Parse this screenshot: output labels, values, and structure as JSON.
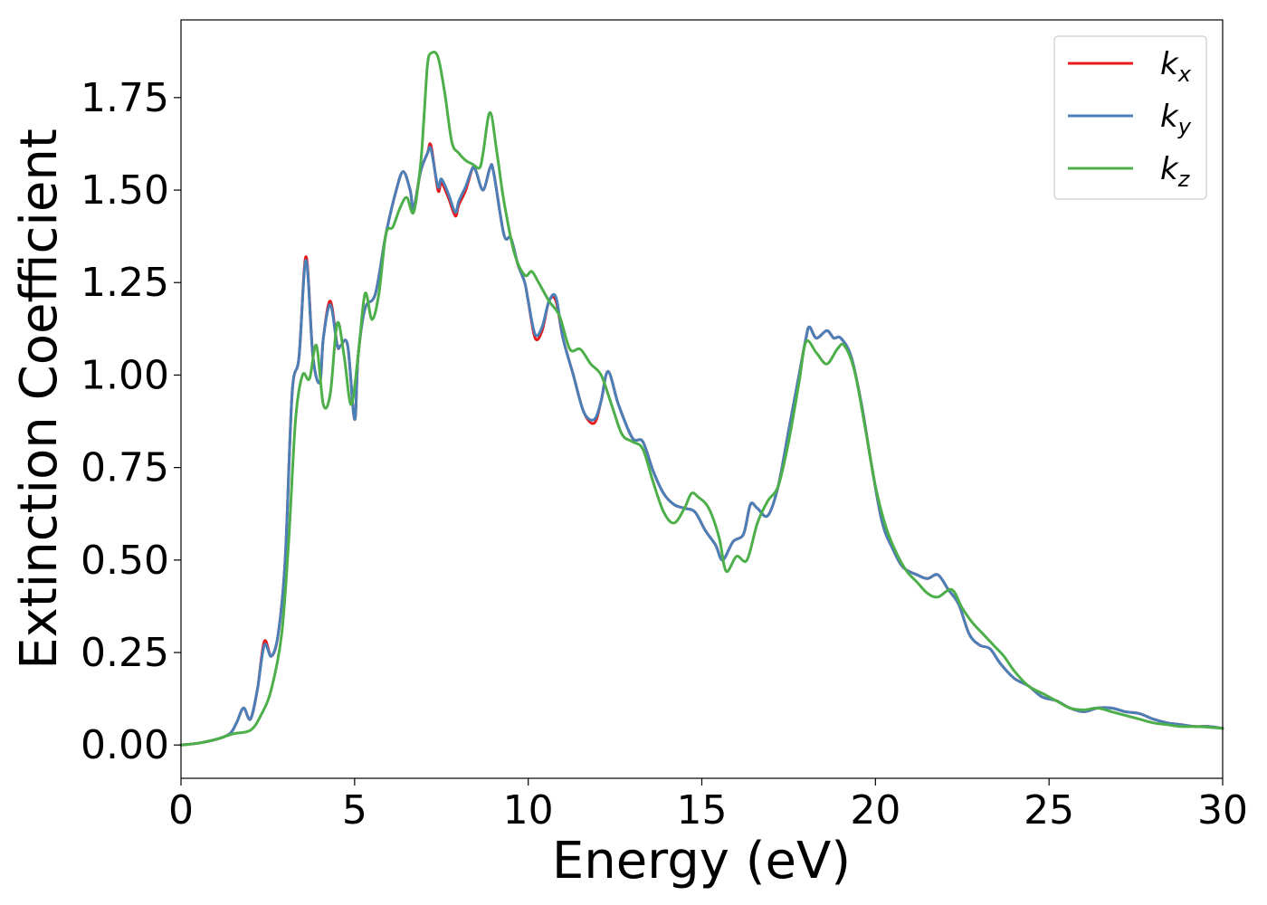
{
  "chart_data": {
    "type": "line",
    "xlabel": "Energy (eV)",
    "ylabel": "Extinction Coefficient",
    "xlim": [
      0,
      30
    ],
    "ylim": [
      -0.09,
      1.96
    ],
    "xticks": [
      0,
      5,
      10,
      15,
      20,
      25,
      30
    ],
    "xtick_labels": [
      "0",
      "5",
      "10",
      "15",
      "20",
      "25",
      "30"
    ],
    "yticks": [
      0,
      0.25,
      0.5,
      0.75,
      1.0,
      1.25,
      1.5,
      1.75
    ],
    "ytick_labels": [
      "0.00",
      "0.25",
      "0.50",
      "0.75",
      "1.00",
      "1.25",
      "1.50",
      "1.75"
    ],
    "grid": false,
    "legend_position": "top-right",
    "series": [
      {
        "name": "kx",
        "label_base": "k",
        "label_sub": "x",
        "color": "#e41a1c",
        "x": [
          0,
          0.5,
          1.0,
          1.4,
          1.6,
          1.8,
          2.0,
          2.2,
          2.4,
          2.6,
          2.8,
          3.0,
          3.2,
          3.4,
          3.6,
          3.8,
          4.0,
          4.1,
          4.3,
          4.5,
          4.6,
          4.8,
          5.0,
          5.1,
          5.3,
          5.6,
          5.9,
          6.2,
          6.4,
          6.6,
          6.7,
          6.9,
          7.1,
          7.2,
          7.4,
          7.5,
          7.7,
          7.9,
          8.0,
          8.2,
          8.4,
          8.5,
          8.7,
          8.9,
          9.0,
          9.3,
          9.5,
          9.7,
          9.9,
          10.0,
          10.2,
          10.4,
          10.6,
          10.8,
          11.0,
          11.3,
          11.6,
          11.9,
          12.1,
          12.3,
          12.6,
          13.0,
          13.3,
          13.6,
          13.9,
          14.2,
          14.5,
          14.8,
          15.1,
          15.4,
          15.6,
          15.9,
          16.2,
          16.4,
          16.6,
          16.9,
          17.2,
          17.5,
          17.8,
          18.0,
          18.1,
          18.3,
          18.6,
          18.8,
          19.0,
          19.3,
          19.6,
          19.9,
          20.2,
          20.5,
          20.8,
          21.2,
          21.5,
          21.8,
          22.1,
          22.4,
          22.7,
          23.0,
          23.3,
          23.6,
          24.0,
          24.4,
          24.8,
          25.2,
          25.6,
          26.0,
          26.4,
          26.8,
          27.2,
          27.6,
          28.0,
          28.4,
          28.8,
          29.2,
          29.6,
          30.0
        ],
        "y": [
          0.0,
          0.005,
          0.015,
          0.03,
          0.06,
          0.1,
          0.07,
          0.15,
          0.28,
          0.24,
          0.3,
          0.5,
          0.95,
          1.05,
          1.32,
          1.05,
          0.98,
          1.1,
          1.2,
          1.08,
          1.08,
          1.08,
          0.88,
          1.05,
          1.18,
          1.22,
          1.38,
          1.5,
          1.55,
          1.5,
          1.45,
          1.55,
          1.6,
          1.62,
          1.5,
          1.52,
          1.48,
          1.43,
          1.46,
          1.5,
          1.56,
          1.55,
          1.5,
          1.56,
          1.55,
          1.38,
          1.37,
          1.3,
          1.25,
          1.2,
          1.1,
          1.12,
          1.2,
          1.2,
          1.1,
          1.0,
          0.9,
          0.87,
          0.93,
          1.01,
          0.92,
          0.83,
          0.82,
          0.74,
          0.68,
          0.65,
          0.64,
          0.63,
          0.58,
          0.54,
          0.5,
          0.55,
          0.57,
          0.65,
          0.64,
          0.62,
          0.7,
          0.85,
          1.0,
          1.1,
          1.13,
          1.1,
          1.12,
          1.1,
          1.1,
          1.05,
          0.92,
          0.75,
          0.6,
          0.53,
          0.48,
          0.46,
          0.45,
          0.46,
          0.42,
          0.38,
          0.3,
          0.27,
          0.26,
          0.22,
          0.18,
          0.16,
          0.13,
          0.12,
          0.1,
          0.09,
          0.1,
          0.1,
          0.09,
          0.085,
          0.07,
          0.06,
          0.055,
          0.05,
          0.05,
          0.045
        ]
      },
      {
        "name": "ky",
        "label_base": "k",
        "label_sub": "y",
        "color": "#4a7fb8",
        "x": [
          0,
          0.5,
          1.0,
          1.4,
          1.6,
          1.8,
          2.0,
          2.2,
          2.4,
          2.6,
          2.8,
          3.0,
          3.2,
          3.4,
          3.6,
          3.8,
          4.0,
          4.1,
          4.3,
          4.5,
          4.6,
          4.8,
          5.0,
          5.1,
          5.3,
          5.6,
          5.9,
          6.2,
          6.4,
          6.6,
          6.7,
          6.9,
          7.1,
          7.2,
          7.4,
          7.5,
          7.7,
          7.9,
          8.0,
          8.2,
          8.4,
          8.5,
          8.7,
          8.9,
          9.0,
          9.3,
          9.5,
          9.7,
          9.9,
          10.0,
          10.2,
          10.4,
          10.6,
          10.8,
          11.0,
          11.3,
          11.6,
          11.9,
          12.1,
          12.3,
          12.6,
          13.0,
          13.3,
          13.6,
          13.9,
          14.2,
          14.5,
          14.8,
          15.1,
          15.4,
          15.6,
          15.9,
          16.2,
          16.4,
          16.6,
          16.9,
          17.2,
          17.5,
          17.8,
          18.0,
          18.1,
          18.3,
          18.6,
          18.8,
          19.0,
          19.3,
          19.6,
          19.9,
          20.2,
          20.5,
          20.8,
          21.2,
          21.5,
          21.8,
          22.1,
          22.4,
          22.7,
          23.0,
          23.3,
          23.6,
          24.0,
          24.4,
          24.8,
          25.2,
          25.6,
          26.0,
          26.4,
          26.8,
          27.2,
          27.6,
          28.0,
          28.4,
          28.8,
          29.2,
          29.6,
          30.0
        ],
        "y": [
          0.0,
          0.005,
          0.015,
          0.03,
          0.06,
          0.1,
          0.07,
          0.15,
          0.27,
          0.24,
          0.3,
          0.5,
          0.95,
          1.05,
          1.31,
          1.05,
          0.98,
          1.1,
          1.19,
          1.08,
          1.08,
          1.08,
          0.88,
          1.05,
          1.18,
          1.22,
          1.38,
          1.5,
          1.55,
          1.5,
          1.45,
          1.55,
          1.6,
          1.61,
          1.51,
          1.53,
          1.49,
          1.44,
          1.47,
          1.51,
          1.56,
          1.55,
          1.5,
          1.56,
          1.55,
          1.38,
          1.37,
          1.3,
          1.25,
          1.2,
          1.11,
          1.13,
          1.2,
          1.21,
          1.1,
          1.0,
          0.9,
          0.88,
          0.93,
          1.01,
          0.92,
          0.83,
          0.82,
          0.74,
          0.68,
          0.65,
          0.64,
          0.63,
          0.58,
          0.54,
          0.5,
          0.55,
          0.57,
          0.65,
          0.64,
          0.62,
          0.7,
          0.85,
          1.0,
          1.1,
          1.13,
          1.1,
          1.12,
          1.1,
          1.1,
          1.05,
          0.92,
          0.75,
          0.6,
          0.53,
          0.48,
          0.46,
          0.45,
          0.46,
          0.42,
          0.38,
          0.3,
          0.27,
          0.26,
          0.22,
          0.18,
          0.16,
          0.13,
          0.12,
          0.1,
          0.09,
          0.1,
          0.1,
          0.09,
          0.085,
          0.07,
          0.06,
          0.055,
          0.05,
          0.05,
          0.045
        ]
      },
      {
        "name": "kz",
        "label_base": "k",
        "label_sub": "z",
        "color": "#4daf4a",
        "x": [
          0,
          0.5,
          1.0,
          1.5,
          2.0,
          2.3,
          2.6,
          2.9,
          3.1,
          3.3,
          3.5,
          3.7,
          3.9,
          4.1,
          4.3,
          4.5,
          4.7,
          4.9,
          5.1,
          5.3,
          5.5,
          5.7,
          5.9,
          6.1,
          6.3,
          6.5,
          6.7,
          6.9,
          7.0,
          7.1,
          7.2,
          7.4,
          7.6,
          7.8,
          8.0,
          8.2,
          8.4,
          8.6,
          8.7,
          8.9,
          9.1,
          9.3,
          9.6,
          9.9,
          10.1,
          10.3,
          10.6,
          10.9,
          11.2,
          11.5,
          11.8,
          12.1,
          12.4,
          12.7,
          13.0,
          13.3,
          13.6,
          13.9,
          14.2,
          14.5,
          14.7,
          14.9,
          15.2,
          15.5,
          15.7,
          16.0,
          16.3,
          16.6,
          16.9,
          17.2,
          17.5,
          17.8,
          18.0,
          18.3,
          18.6,
          18.9,
          19.1,
          19.4,
          19.7,
          20.0,
          20.3,
          20.6,
          20.9,
          21.2,
          21.5,
          21.8,
          22.2,
          22.5,
          22.8,
          23.1,
          23.4,
          23.7,
          24.0,
          24.4,
          24.8,
          25.2,
          25.6,
          26.0,
          26.4,
          26.8,
          27.2,
          27.6,
          28.0,
          28.4,
          28.8,
          29.2,
          29.6,
          30.0
        ],
        "y": [
          0.0,
          0.005,
          0.015,
          0.03,
          0.04,
          0.08,
          0.15,
          0.3,
          0.55,
          0.88,
          1.0,
          0.99,
          1.08,
          0.92,
          0.95,
          1.14,
          1.05,
          0.92,
          1.05,
          1.22,
          1.15,
          1.22,
          1.38,
          1.4,
          1.45,
          1.48,
          1.44,
          1.57,
          1.7,
          1.84,
          1.87,
          1.86,
          1.76,
          1.63,
          1.6,
          1.58,
          1.57,
          1.56,
          1.6,
          1.71,
          1.6,
          1.47,
          1.33,
          1.27,
          1.28,
          1.25,
          1.2,
          1.16,
          1.07,
          1.07,
          1.03,
          1.0,
          0.92,
          0.84,
          0.82,
          0.8,
          0.71,
          0.63,
          0.6,
          0.64,
          0.68,
          0.67,
          0.64,
          0.56,
          0.47,
          0.51,
          0.5,
          0.6,
          0.66,
          0.7,
          0.82,
          0.98,
          1.09,
          1.06,
          1.03,
          1.07,
          1.08,
          1.01,
          0.86,
          0.7,
          0.59,
          0.52,
          0.47,
          0.44,
          0.41,
          0.4,
          0.42,
          0.37,
          0.33,
          0.3,
          0.27,
          0.24,
          0.2,
          0.16,
          0.14,
          0.12,
          0.1,
          0.095,
          0.1,
          0.09,
          0.08,
          0.07,
          0.06,
          0.055,
          0.05,
          0.05,
          0.048,
          0.045
        ]
      }
    ]
  }
}
